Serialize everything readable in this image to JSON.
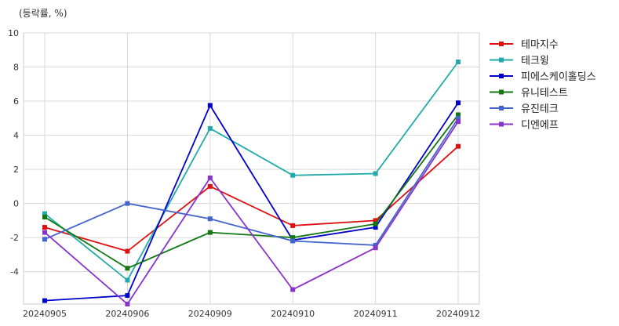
{
  "chart_data": {
    "type": "line",
    "ylabel": "(등락률, %)",
    "categories": [
      "20240905",
      "20240906",
      "20240909",
      "20240910",
      "20240911",
      "20240912"
    ],
    "ylim": [
      -5.9,
      10
    ],
    "yticks": [
      -4,
      -2,
      0,
      2,
      4,
      6,
      8,
      10
    ],
    "grid": true,
    "legend_position": "right",
    "series": [
      {
        "name": "테마지수",
        "color": "#dd1111",
        "values": [
          -1.4,
          -2.8,
          1.0,
          -1.3,
          -1.0,
          3.35
        ]
      },
      {
        "name": "테크윙",
        "color": "#22aaaa",
        "values": [
          -0.6,
          -4.5,
          4.4,
          1.65,
          1.75,
          8.3
        ]
      },
      {
        "name": "피에스케이홀딩스",
        "color": "#0000cc",
        "values": [
          -5.7,
          -5.4,
          5.75,
          -2.15,
          -1.4,
          5.9
        ]
      },
      {
        "name": "유니테스트",
        "color": "#117711",
        "values": [
          -0.8,
          -3.8,
          -1.7,
          -2.0,
          -1.2,
          5.2
        ]
      },
      {
        "name": "유진테크",
        "color": "#4466cc",
        "values": [
          -2.1,
          0.0,
          -0.9,
          -2.2,
          -2.45,
          5.0
        ]
      },
      {
        "name": "디엔에프",
        "color": "#8833cc",
        "values": [
          -1.7,
          -5.9,
          1.5,
          -5.05,
          -2.6,
          4.8
        ]
      }
    ]
  }
}
